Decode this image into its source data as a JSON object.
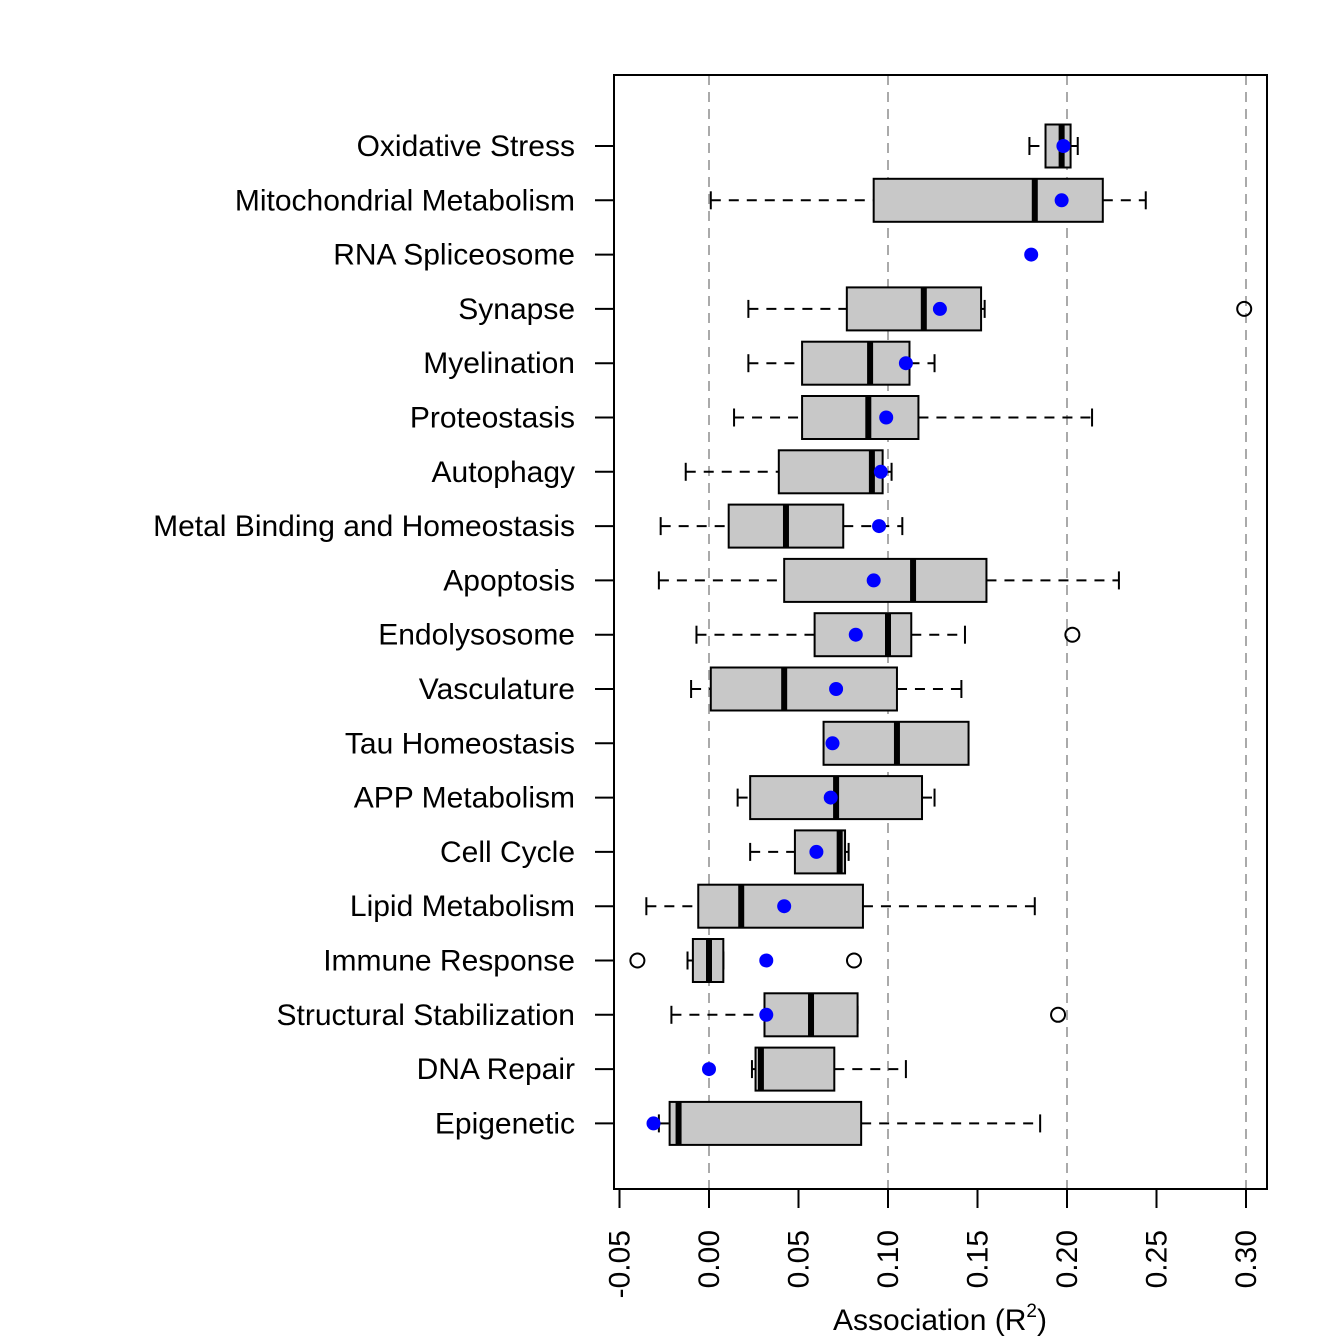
{
  "chart_data": {
    "type": "boxplot",
    "orientation": "horizontal",
    "xlabel": "Association (R",
    "xlabel_sup": "2",
    "xlabel_close": ")",
    "xlim": [
      -0.055,
      0.31
    ],
    "ticks": [
      -0.05,
      0.0,
      0.05,
      0.1,
      0.15,
      0.2,
      0.25,
      0.3
    ],
    "tick_labels": [
      "-0.05",
      "0.00",
      "0.05",
      "0.10",
      "0.15",
      "0.20",
      "0.25",
      "0.30"
    ],
    "reference_lines": [
      0.0,
      0.1,
      0.2,
      0.3
    ],
    "grid": false,
    "colors": {
      "box_fill": "#c8c8c8",
      "point": "#0000ff",
      "reference_line": "#aaaaaa",
      "stroke": "#000000"
    },
    "series": [
      {
        "name": "Oxidative Stress",
        "whisker_low": 0.179,
        "q1": 0.188,
        "median": 0.197,
        "q3": 0.202,
        "whisker_high": 0.206,
        "point": 0.198,
        "outliers": []
      },
      {
        "name": "Mitochondrial Metabolism",
        "whisker_low": 0.001,
        "q1": 0.092,
        "median": 0.182,
        "q3": 0.22,
        "whisker_high": 0.244,
        "point": 0.197,
        "outliers": []
      },
      {
        "name": "RNA Spliceosome",
        "whisker_low": null,
        "q1": null,
        "median": null,
        "q3": null,
        "whisker_high": null,
        "point": 0.18,
        "outliers": []
      },
      {
        "name": "Synapse",
        "whisker_low": 0.022,
        "q1": 0.077,
        "median": 0.12,
        "q3": 0.152,
        "whisker_high": 0.154,
        "point": 0.129,
        "outliers": [
          0.299
        ]
      },
      {
        "name": "Myelination",
        "whisker_low": 0.022,
        "q1": 0.052,
        "median": 0.09,
        "q3": 0.112,
        "whisker_high": 0.126,
        "point": 0.11,
        "outliers": []
      },
      {
        "name": "Proteostasis",
        "whisker_low": 0.014,
        "q1": 0.052,
        "median": 0.089,
        "q3": 0.117,
        "whisker_high": 0.214,
        "point": 0.099,
        "outliers": []
      },
      {
        "name": "Autophagy",
        "whisker_low": -0.013,
        "q1": 0.039,
        "median": 0.091,
        "q3": 0.097,
        "whisker_high": 0.102,
        "point": 0.096,
        "outliers": []
      },
      {
        "name": "Metal Binding and Homeostasis",
        "whisker_low": -0.027,
        "q1": 0.011,
        "median": 0.043,
        "q3": 0.075,
        "whisker_high": 0.108,
        "point": 0.095,
        "outliers": []
      },
      {
        "name": "Apoptosis",
        "whisker_low": -0.028,
        "q1": 0.042,
        "median": 0.114,
        "q3": 0.155,
        "whisker_high": 0.229,
        "point": 0.092,
        "outliers": []
      },
      {
        "name": "Endolysosome",
        "whisker_low": -0.007,
        "q1": 0.059,
        "median": 0.1,
        "q3": 0.113,
        "whisker_high": 0.143,
        "point": 0.082,
        "outliers": [
          0.203
        ]
      },
      {
        "name": "Vasculature",
        "whisker_low": -0.01,
        "q1": 0.001,
        "median": 0.042,
        "q3": 0.105,
        "whisker_high": 0.141,
        "point": 0.071,
        "outliers": []
      },
      {
        "name": "Tau Homeostasis",
        "whisker_low": null,
        "q1": 0.064,
        "median": 0.105,
        "q3": 0.145,
        "whisker_high": null,
        "point": 0.069,
        "outliers": []
      },
      {
        "name": "APP Metabolism",
        "whisker_low": 0.016,
        "q1": 0.023,
        "median": 0.071,
        "q3": 0.119,
        "whisker_high": 0.126,
        "point": 0.068,
        "outliers": []
      },
      {
        "name": "Cell Cycle",
        "whisker_low": 0.023,
        "q1": 0.048,
        "median": 0.073,
        "q3": 0.076,
        "whisker_high": 0.078,
        "point": 0.06,
        "outliers": []
      },
      {
        "name": "Lipid Metabolism",
        "whisker_low": -0.035,
        "q1": -0.006,
        "median": 0.018,
        "q3": 0.086,
        "whisker_high": 0.182,
        "point": 0.042,
        "outliers": []
      },
      {
        "name": "Immune Response",
        "whisker_low": -0.012,
        "q1": -0.009,
        "median": 0.0,
        "q3": 0.008,
        "whisker_high": 0.008,
        "point": 0.032,
        "outliers": [
          -0.04,
          0.081
        ]
      },
      {
        "name": "Structural Stabilization",
        "whisker_low": -0.021,
        "q1": 0.031,
        "median": 0.057,
        "q3": 0.083,
        "whisker_high": 0.083,
        "point": 0.032,
        "outliers": [
          0.195
        ]
      },
      {
        "name": "DNA Repair",
        "whisker_low": 0.024,
        "q1": 0.026,
        "median": 0.029,
        "q3": 0.07,
        "whisker_high": 0.11,
        "point": 0.0,
        "outliers": []
      },
      {
        "name": "Epigenetic",
        "whisker_low": -0.028,
        "q1": -0.022,
        "median": -0.017,
        "q3": 0.085,
        "whisker_high": 0.185,
        "point": -0.031,
        "outliers": []
      }
    ]
  }
}
